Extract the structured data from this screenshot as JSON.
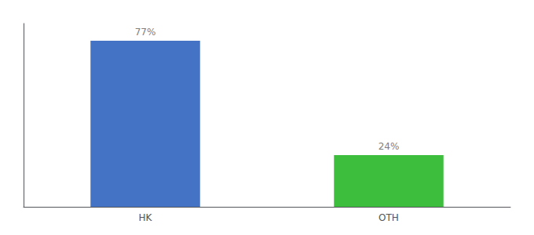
{
  "chart_data": {
    "type": "bar",
    "categories": [
      "HK",
      "OTH"
    ],
    "values": [
      77,
      24
    ],
    "value_labels": [
      "77%",
      "24%"
    ],
    "colors": [
      "#4472C4",
      "#3DBF3D"
    ],
    "ylim": [
      0,
      85
    ],
    "data_labels": true,
    "tick_labels": "x",
    "grid": false
  }
}
